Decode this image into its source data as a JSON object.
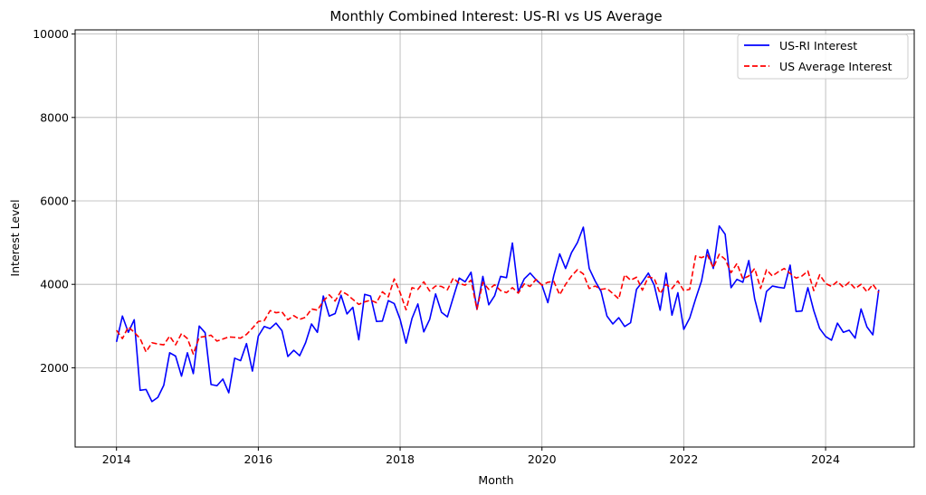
{
  "chart_data": {
    "type": "line",
    "title": "Monthly Combined Interest: US-RI vs US Average",
    "xlabel": "Month",
    "ylabel": "Interest Level",
    "x_start": "2014-01",
    "xlim": [
      "2013-06",
      "2025-04"
    ],
    "ylim": [
      100,
      10100
    ],
    "x_ticks": [
      "2014",
      "2016",
      "2018",
      "2020",
      "2022",
      "2024"
    ],
    "y_ticks": [
      2000,
      4000,
      6000,
      8000,
      10000
    ],
    "grid": true,
    "legend_position": "top-right",
    "series": [
      {
        "name": "US-RI Interest",
        "color": "#0000ff",
        "style": "solid",
        "values": [
          2620,
          3240,
          2850,
          3150,
          1460,
          1480,
          1190,
          1290,
          1580,
          2360,
          2280,
          1800,
          2360,
          1860,
          3000,
          2840,
          1600,
          1570,
          1730,
          1400,
          2230,
          2170,
          2580,
          1920,
          2760,
          2990,
          2940,
          3070,
          2890,
          2270,
          2420,
          2290,
          2600,
          3050,
          2850,
          3720,
          3240,
          3300,
          3740,
          3290,
          3450,
          2670,
          3760,
          3720,
          3110,
          3120,
          3610,
          3540,
          3160,
          2590,
          3180,
          3530,
          2860,
          3160,
          3770,
          3330,
          3220,
          3690,
          4150,
          4060,
          4290,
          3400,
          4190,
          3510,
          3730,
          4190,
          4160,
          4990,
          3820,
          4130,
          4270,
          4110,
          3980,
          3560,
          4210,
          4730,
          4380,
          4760,
          5000,
          5370,
          4380,
          4080,
          3830,
          3240,
          3050,
          3200,
          2990,
          3080,
          3880,
          4060,
          4270,
          3980,
          3380,
          4270,
          3260,
          3800,
          2920,
          3190,
          3650,
          4080,
          4830,
          4380,
          5400,
          5200,
          3920,
          4120,
          4050,
          4570,
          3650,
          3100,
          3830,
          3960,
          3930,
          3910,
          4460,
          3350,
          3360,
          3920,
          3370,
          2940,
          2750,
          2660,
          3070,
          2850,
          2900,
          2710,
          3410,
          2980,
          2790,
          3870
        ]
      },
      {
        "name": "US Average Interest",
        "color": "#ff0000",
        "style": "dashed",
        "values": [
          2900,
          2700,
          2980,
          2850,
          2700,
          2380,
          2600,
          2570,
          2550,
          2760,
          2550,
          2820,
          2700,
          2330,
          2730,
          2750,
          2780,
          2640,
          2690,
          2740,
          2730,
          2710,
          2800,
          2950,
          3110,
          3130,
          3370,
          3320,
          3340,
          3150,
          3250,
          3160,
          3210,
          3410,
          3380,
          3600,
          3750,
          3600,
          3840,
          3760,
          3640,
          3520,
          3580,
          3620,
          3560,
          3820,
          3700,
          4130,
          3800,
          3390,
          3920,
          3880,
          4060,
          3840,
          3960,
          3950,
          3870,
          4150,
          4020,
          3980,
          4100,
          3400,
          4050,
          3880,
          3990,
          3850,
          3800,
          3920,
          3790,
          4010,
          3950,
          4120,
          3980,
          4050,
          4070,
          3750,
          4000,
          4200,
          4350,
          4250,
          3900,
          3960,
          3880,
          3900,
          3780,
          3650,
          4230,
          4100,
          4170,
          3860,
          4180,
          4140,
          3780,
          4000,
          3900,
          4080,
          3850,
          3880,
          4680,
          4640,
          4700,
          4400,
          4720,
          4600,
          4280,
          4500,
          4130,
          4200,
          4380,
          3900,
          4350,
          4200,
          4300,
          4380,
          4260,
          4150,
          4200,
          4320,
          3850,
          4230,
          4020,
          3950,
          4070,
          3930,
          4050,
          3900,
          4000,
          3820,
          4000,
          3800
        ]
      }
    ]
  }
}
